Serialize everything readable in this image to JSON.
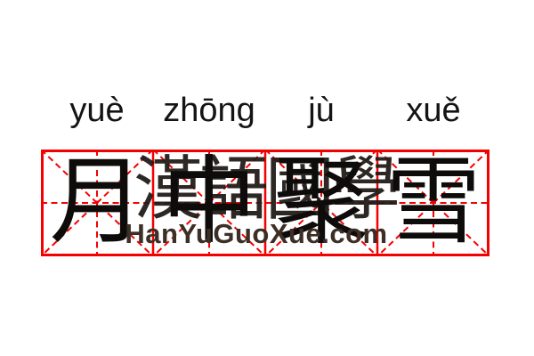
{
  "page": {
    "background": "#ffffff"
  },
  "card": {
    "syllables": [
      {
        "pinyin": "yuè",
        "hanzi": "月"
      },
      {
        "pinyin": "zhōng",
        "hanzi": "中"
      },
      {
        "pinyin": "jù",
        "hanzi": "聚"
      },
      {
        "pinyin": "xuě",
        "hanzi": "雪"
      }
    ]
  },
  "watermark": {
    "cjk": "漢語國學",
    "latin": "HanYuGuoXue.com"
  },
  "grid": {
    "cells": 4,
    "style": "tianzige-with-diagonals"
  },
  "colors": {
    "grid_red": "#f40000",
    "hanzi_black": "#0e0c0b",
    "pinyin_black": "#141414",
    "watermark_cjk": "#221d19",
    "watermark_latin": "#3c2f26"
  }
}
